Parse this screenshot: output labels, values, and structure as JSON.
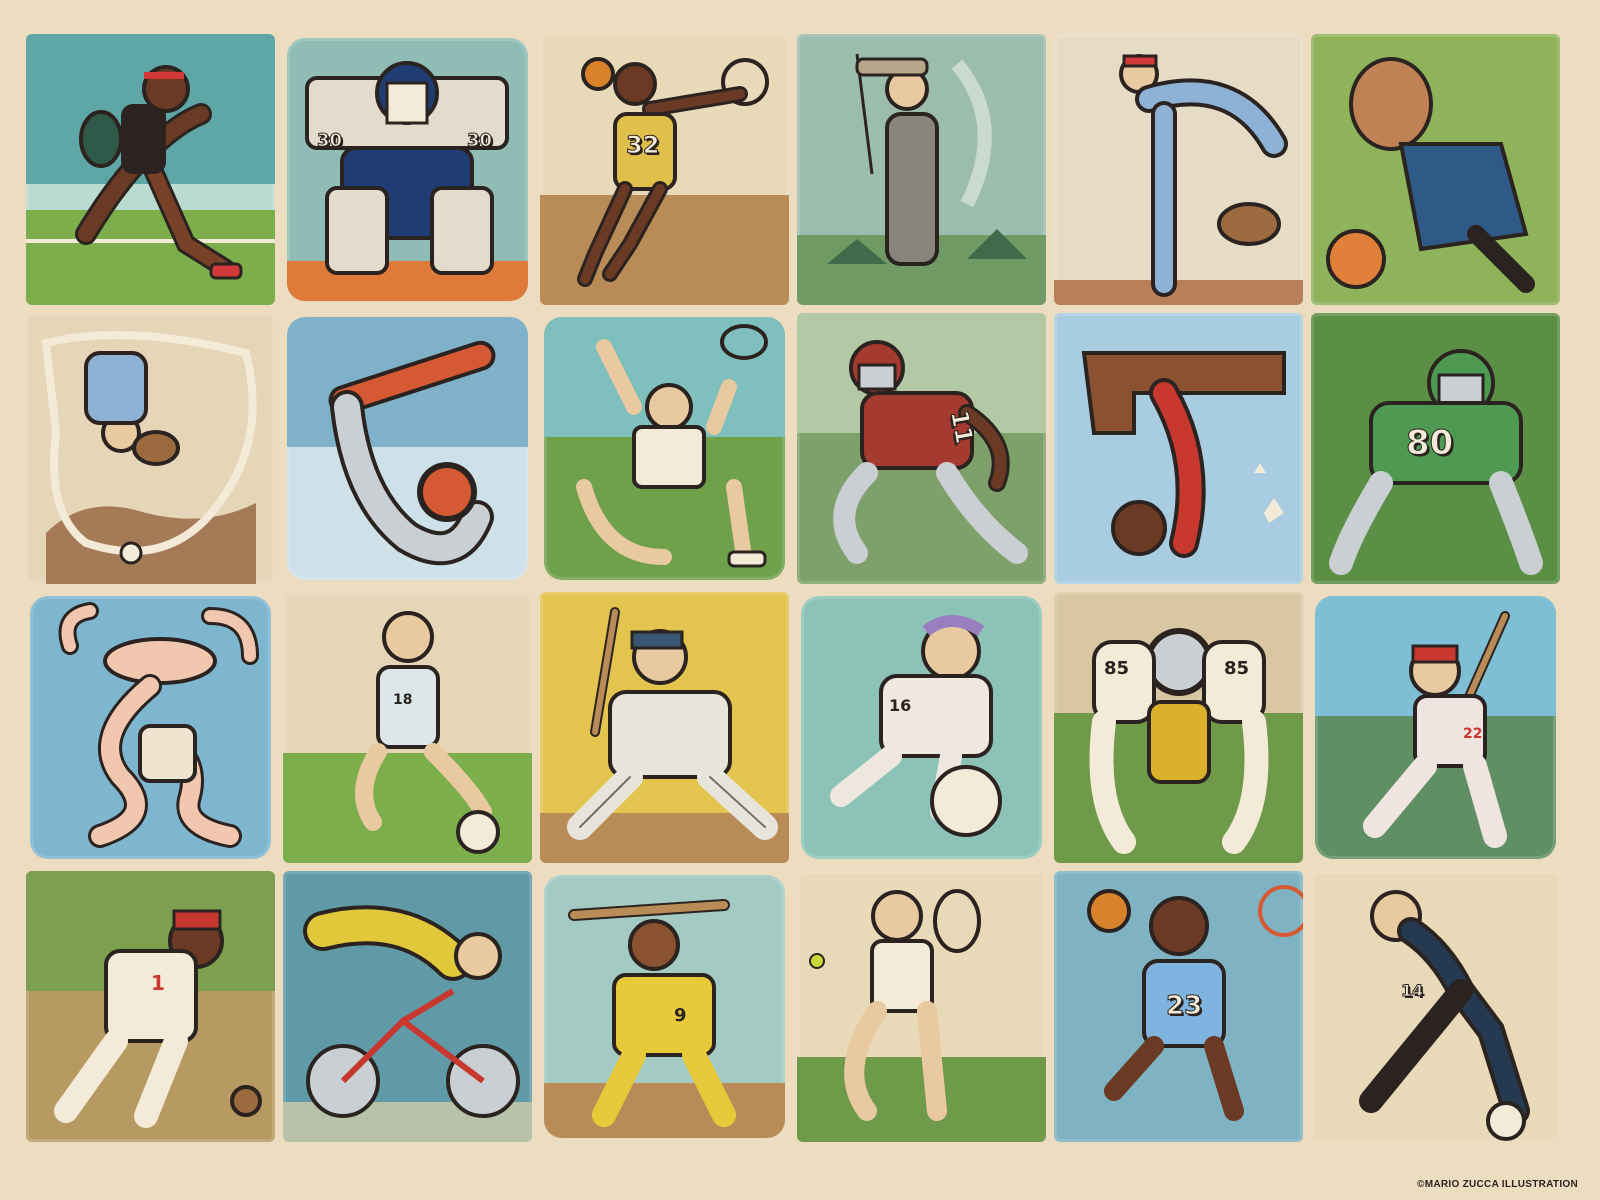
{
  "credit": "©MARIO ZUCCA ILLUSTRATION",
  "tiles": [
    {
      "sport": "tennis",
      "number": ""
    },
    {
      "sport": "hockey-goalie",
      "number": "30"
    },
    {
      "sport": "basketball",
      "number": "32"
    },
    {
      "sport": "golf",
      "number": ""
    },
    {
      "sport": "baseball-pitcher",
      "number": ""
    },
    {
      "sport": "basketball",
      "number": ""
    },
    {
      "sport": "baseball-pitcher",
      "number": ""
    },
    {
      "sport": "snowboard",
      "number": ""
    },
    {
      "sport": "tennis",
      "number": ""
    },
    {
      "sport": "football",
      "number": "11"
    },
    {
      "sport": "gymnastics",
      "number": ""
    },
    {
      "sport": "football",
      "number": "80"
    },
    {
      "sport": "figure-skating",
      "number": ""
    },
    {
      "sport": "soccer",
      "number": "18"
    },
    {
      "sport": "baseball-batter",
      "number": ""
    },
    {
      "sport": "soccer",
      "number": "16"
    },
    {
      "sport": "football",
      "number": "85"
    },
    {
      "sport": "baseball-batter",
      "number": "22"
    },
    {
      "sport": "baseball-fielder",
      "number": "1"
    },
    {
      "sport": "cycling",
      "number": ""
    },
    {
      "sport": "baseball-batter",
      "number": "9"
    },
    {
      "sport": "tennis",
      "number": ""
    },
    {
      "sport": "basketball",
      "number": "23"
    },
    {
      "sport": "soccer",
      "number": "14"
    }
  ],
  "colors": {
    "background": "#ecdcc0",
    "outline": "#2b2320"
  }
}
